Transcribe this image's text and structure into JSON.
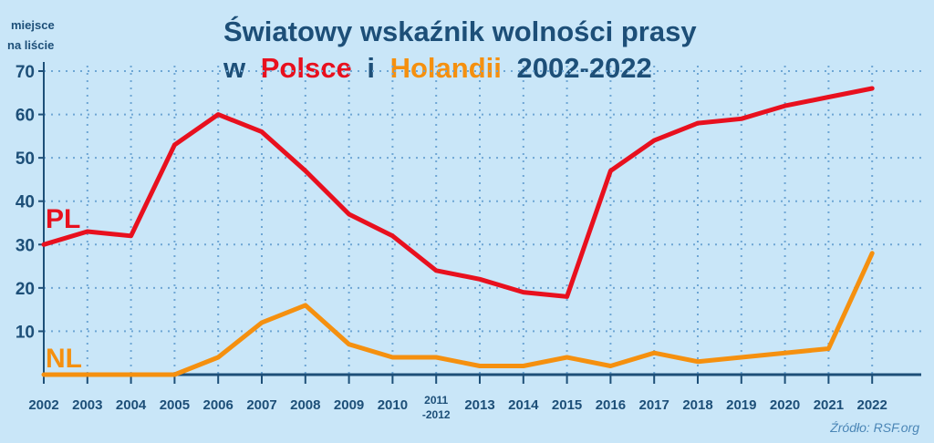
{
  "chart_data": {
    "type": "line",
    "title_line1": "Światowy wskaźnik wolności prasy",
    "title_prefix": "w",
    "title_pl": "Polsce",
    "title_mid": "i",
    "title_nl": "Holandii",
    "title_years": "2002-2022",
    "ylabel_line1": "miejsce",
    "ylabel_line2": "na liście",
    "ylim": [
      0,
      70
    ],
    "yticks": [
      10,
      20,
      30,
      40,
      50,
      60,
      70
    ],
    "grid": true,
    "categories": [
      "2002",
      "2003",
      "2004",
      "2005",
      "2006",
      "2007",
      "2008",
      "2009",
      "2010",
      "2011-2012",
      "2013",
      "2014",
      "2015",
      "2016",
      "2017",
      "2018",
      "2019",
      "2020",
      "2021",
      "2022"
    ],
    "series": [
      {
        "name": "PL",
        "color": "#e8101e",
        "values": [
          30,
          33,
          32,
          53,
          60,
          56,
          47,
          37,
          32,
          24,
          22,
          19,
          18,
          47,
          54,
          58,
          59,
          62,
          64,
          66
        ]
      },
      {
        "name": "NL",
        "color": "#f5900f",
        "values": [
          0,
          0,
          0,
          0,
          4,
          12,
          16,
          7,
          4,
          4,
          2,
          2,
          4,
          2,
          5,
          3,
          4,
          5,
          6,
          28
        ]
      }
    ],
    "source": "Źródło: RSF.org"
  },
  "colors": {
    "background": "#c9e6f8",
    "text": "#1d4f78",
    "grid": "#6ea6d4",
    "pl": "#e8101e",
    "nl": "#f5900f"
  }
}
